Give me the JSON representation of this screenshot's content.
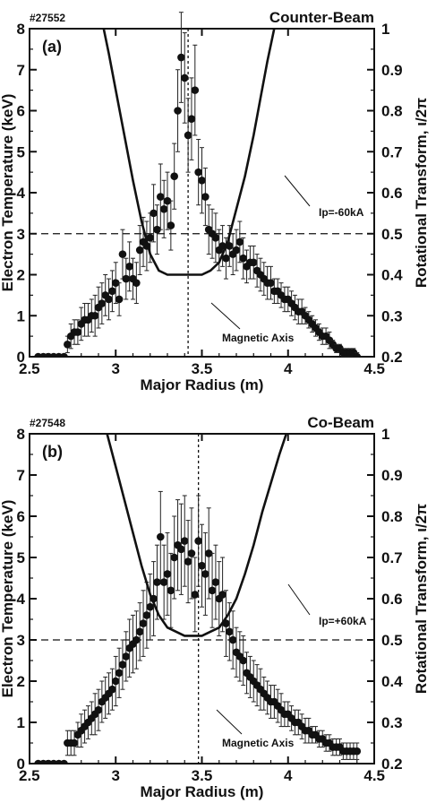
{
  "chart_data": [
    {
      "type": "scatter",
      "panel_label": "(a)",
      "shot_label": "#27552",
      "corner_label": "Counter-Beam",
      "xlabel": "Major Radius (m)",
      "ylabel": "Electron Temperature (keV)",
      "y2label": "Rotational Transform, ι/2π",
      "xlim": [
        2.5,
        4.5
      ],
      "ylim": [
        0,
        8
      ],
      "y2lim": [
        0.2,
        1.0
      ],
      "xticks": [
        "2.5",
        "3",
        "3.5",
        "4",
        "4.5"
      ],
      "yticks": [
        "0",
        "1",
        "2",
        "3",
        "4",
        "5",
        "6",
        "7",
        "8"
      ],
      "y2ticks": [
        "0.2",
        "0.3",
        "0.4",
        "0.5",
        "0.6",
        "0.7",
        "0.8",
        "0.9",
        "1"
      ],
      "magnetic_axis_r": 3.42,
      "reference_te": 3.0,
      "annotations": {
        "current": "Ip=-60kA",
        "axis": "Magnetic Axis"
      },
      "series": [
        {
          "kind": "points",
          "x": [
            2.55,
            2.58,
            2.61,
            2.64,
            2.67,
            2.7,
            2.72,
            2.74,
            2.76,
            2.78,
            2.8,
            2.82,
            2.84,
            2.86,
            2.88,
            2.9,
            2.92,
            2.94,
            2.96,
            2.98,
            3.0,
            3.02,
            3.04,
            3.06,
            3.08,
            3.1,
            3.12,
            3.14,
            3.16,
            3.18,
            3.2,
            3.22,
            3.24,
            3.26,
            3.28,
            3.3,
            3.32,
            3.34,
            3.36,
            3.38,
            3.4,
            3.42,
            3.44,
            3.46,
            3.48,
            3.5,
            3.52,
            3.54,
            3.56,
            3.58,
            3.6,
            3.62,
            3.64,
            3.66,
            3.68,
            3.7,
            3.72,
            3.74,
            3.76,
            3.78,
            3.8,
            3.82,
            3.84,
            3.86,
            3.88,
            3.9,
            3.92,
            3.94,
            3.96,
            3.98,
            4.0,
            4.02,
            4.04,
            4.06,
            4.08,
            4.1,
            4.12,
            4.14,
            4.16,
            4.18,
            4.2,
            4.22,
            4.24,
            4.26,
            4.28,
            4.3,
            4.32,
            4.34,
            4.36,
            4.38,
            4.4
          ],
          "y": [
            0,
            0,
            0,
            0,
            0,
            0,
            0.3,
            0.5,
            0.6,
            0.6,
            0.8,
            0.9,
            0.9,
            1.0,
            1.0,
            1.2,
            1.3,
            1.5,
            1.4,
            1.6,
            1.8,
            1.4,
            2.5,
            1.9,
            2.2,
            1.9,
            1.8,
            2.6,
            2.8,
            2.7,
            2.9,
            3.5,
            3.1,
            3.9,
            3.6,
            3.8,
            3.2,
            4.4,
            6.0,
            7.3,
            6.8,
            5.4,
            5.8,
            6.5,
            4.5,
            4.3,
            3.9,
            3.1,
            3.0,
            2.9,
            2.6,
            2.7,
            2.4,
            2.7,
            2.5,
            2.6,
            2.8,
            2.4,
            2.2,
            2.3,
            2.3,
            2.1,
            2.0,
            1.9,
            1.8,
            1.8,
            1.6,
            1.6,
            1.5,
            1.4,
            1.4,
            1.3,
            1.2,
            1.1,
            1.1,
            1.0,
            0.9,
            0.8,
            0.7,
            0.6,
            0.5,
            0.5,
            0.4,
            0.3,
            0.2,
            0.2,
            0.1,
            0.1,
            0.1,
            0.1,
            0.0
          ],
          "err": [
            0,
            0,
            0,
            0,
            0,
            0,
            0.2,
            0.3,
            0.3,
            0.3,
            0.4,
            0.4,
            0.4,
            0.4,
            0.5,
            0.5,
            0.5,
            0.5,
            0.5,
            0.5,
            0.5,
            0.4,
            0.6,
            0.5,
            0.6,
            0.5,
            0.5,
            0.6,
            0.6,
            0.6,
            0.6,
            0.7,
            0.6,
            0.8,
            0.7,
            0.7,
            0.6,
            0.8,
            1.0,
            1.1,
            1.1,
            0.9,
            1.0,
            1.1,
            0.8,
            0.8,
            0.7,
            0.6,
            0.6,
            0.6,
            0.5,
            0.5,
            0.5,
            0.5,
            0.5,
            0.5,
            0.5,
            0.5,
            0.4,
            0.4,
            0.4,
            0.4,
            0.4,
            0.4,
            0.4,
            0.4,
            0.3,
            0.3,
            0.3,
            0.3,
            0.3,
            0.3,
            0.3,
            0.3,
            0.3,
            0.2,
            0.2,
            0.2,
            0.2,
            0.2,
            0.2,
            0.2,
            0.2,
            0.1,
            0.1,
            0.1,
            0.1,
            0.1,
            0.1,
            0.1,
            0.1
          ]
        },
        {
          "kind": "curve",
          "axis": "right",
          "x": [
            2.93,
            2.96,
            3.0,
            3.05,
            3.1,
            3.15,
            3.2,
            3.25,
            3.3,
            3.35,
            3.4,
            3.45,
            3.5,
            3.55,
            3.6,
            3.65,
            3.7,
            3.75,
            3.8,
            3.84,
            3.88,
            3.92
          ],
          "y": [
            1.0,
            0.94,
            0.85,
            0.74,
            0.63,
            0.53,
            0.45,
            0.41,
            0.4,
            0.4,
            0.4,
            0.4,
            0.4,
            0.41,
            0.43,
            0.48,
            0.56,
            0.64,
            0.74,
            0.83,
            0.92,
            1.0
          ]
        }
      ]
    },
    {
      "type": "scatter",
      "panel_label": "(b)",
      "shot_label": "#27548",
      "corner_label": "Co-Beam",
      "xlabel": "Major Radius (m)",
      "ylabel": "Electron Temperature (keV)",
      "y2label": "Rotational Transform, ι/2π",
      "xlim": [
        2.5,
        4.5
      ],
      "ylim": [
        0,
        8
      ],
      "y2lim": [
        0.2,
        1.0
      ],
      "xticks": [
        "2.5",
        "3",
        "3.5",
        "4",
        "4.5"
      ],
      "yticks": [
        "0",
        "1",
        "2",
        "3",
        "4",
        "5",
        "6",
        "7",
        "8"
      ],
      "y2ticks": [
        "0.2",
        "0.3",
        "0.4",
        "0.5",
        "0.6",
        "0.7",
        "0.8",
        "0.9",
        "1"
      ],
      "magnetic_axis_r": 3.48,
      "reference_te": 3.0,
      "annotations": {
        "current": "Ip=+60kA",
        "axis": "Magnetic Axis"
      },
      "series": [
        {
          "kind": "points",
          "x": [
            2.55,
            2.58,
            2.61,
            2.64,
            2.67,
            2.7,
            2.72,
            2.74,
            2.76,
            2.78,
            2.8,
            2.82,
            2.84,
            2.86,
            2.88,
            2.9,
            2.92,
            2.94,
            2.96,
            2.98,
            3.0,
            3.02,
            3.04,
            3.06,
            3.08,
            3.1,
            3.12,
            3.14,
            3.16,
            3.18,
            3.2,
            3.22,
            3.24,
            3.26,
            3.28,
            3.3,
            3.32,
            3.34,
            3.36,
            3.38,
            3.4,
            3.42,
            3.44,
            3.46,
            3.48,
            3.5,
            3.52,
            3.54,
            3.56,
            3.58,
            3.6,
            3.62,
            3.64,
            3.66,
            3.68,
            3.7,
            3.72,
            3.74,
            3.76,
            3.78,
            3.8,
            3.82,
            3.84,
            3.86,
            3.88,
            3.9,
            3.92,
            3.94,
            3.96,
            3.98,
            4.0,
            4.02,
            4.04,
            4.06,
            4.08,
            4.1,
            4.12,
            4.14,
            4.16,
            4.18,
            4.2,
            4.22,
            4.24,
            4.26,
            4.28,
            4.3,
            4.32,
            4.34,
            4.36,
            4.38,
            4.4
          ],
          "y": [
            0,
            0,
            0,
            0,
            0,
            0,
            0.5,
            0.5,
            0.5,
            0.7,
            0.8,
            0.9,
            1.0,
            1.1,
            1.2,
            1.3,
            1.5,
            1.6,
            1.7,
            1.8,
            2.0,
            2.2,
            2.4,
            2.6,
            2.8,
            2.9,
            3.0,
            3.2,
            3.4,
            3.6,
            3.8,
            4.0,
            4.4,
            5.5,
            4.4,
            4.6,
            4.2,
            5.0,
            5.3,
            5.2,
            5.4,
            4.9,
            5.1,
            4.1,
            5.4,
            4.8,
            4.6,
            5.1,
            4.2,
            4.4,
            4.0,
            4.1,
            3.4,
            3.2,
            3.0,
            2.7,
            2.6,
            2.5,
            2.2,
            2.1,
            2.0,
            1.9,
            1.8,
            1.7,
            1.6,
            1.5,
            1.5,
            1.4,
            1.3,
            1.2,
            1.2,
            1.1,
            1.0,
            1.0,
            0.9,
            0.8,
            0.8,
            0.7,
            0.7,
            0.6,
            0.6,
            0.5,
            0.5,
            0.4,
            0.4,
            0.4,
            0.3,
            0.3,
            0.3,
            0.3,
            0.3
          ],
          "err": [
            0,
            0,
            0,
            0,
            0,
            0,
            0.3,
            0.3,
            0.3,
            0.3,
            0.4,
            0.4,
            0.4,
            0.4,
            0.5,
            0.5,
            0.5,
            0.5,
            0.5,
            0.5,
            0.6,
            0.6,
            0.6,
            0.6,
            0.7,
            0.7,
            0.7,
            0.7,
            0.8,
            0.8,
            0.8,
            0.9,
            0.9,
            1.1,
            0.9,
            1.0,
            0.9,
            1.0,
            1.1,
            1.1,
            1.1,
            1.0,
            1.1,
            0.9,
            1.1,
            1.0,
            1.0,
            1.1,
            0.9,
            0.9,
            0.9,
            0.9,
            0.8,
            0.7,
            0.7,
            0.6,
            0.6,
            0.6,
            0.5,
            0.5,
            0.5,
            0.5,
            0.5,
            0.4,
            0.4,
            0.4,
            0.4,
            0.4,
            0.4,
            0.3,
            0.3,
            0.3,
            0.3,
            0.3,
            0.3,
            0.3,
            0.3,
            0.2,
            0.2,
            0.2,
            0.2,
            0.2,
            0.2,
            0.2,
            0.2,
            0.2,
            0.2,
            0.2,
            0.2,
            0.2,
            0.2
          ]
        },
        {
          "kind": "curve",
          "axis": "right",
          "x": [
            2.95,
            3.0,
            3.05,
            3.1,
            3.15,
            3.2,
            3.25,
            3.3,
            3.35,
            3.4,
            3.45,
            3.5,
            3.55,
            3.6,
            3.65,
            3.7,
            3.75,
            3.8,
            3.85,
            3.9,
            3.95,
            3.99
          ],
          "y": [
            1.0,
            0.92,
            0.84,
            0.76,
            0.68,
            0.61,
            0.56,
            0.53,
            0.52,
            0.51,
            0.51,
            0.51,
            0.52,
            0.53,
            0.56,
            0.6,
            0.66,
            0.73,
            0.81,
            0.88,
            0.95,
            1.0
          ]
        }
      ]
    }
  ]
}
